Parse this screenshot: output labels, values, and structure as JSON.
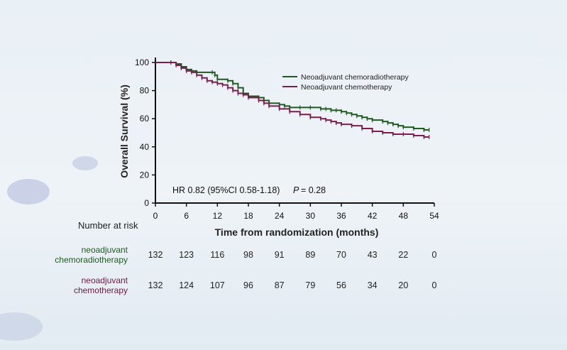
{
  "chart_data": {
    "type": "line",
    "subtype": "kaplan-meier",
    "ylabel": "Overall Survival (%)",
    "xlabel": "Time from randomization (months)",
    "xlim": [
      0,
      54
    ],
    "ylim": [
      0,
      100
    ],
    "xticks": [
      0,
      6,
      12,
      18,
      24,
      30,
      36,
      42,
      48,
      54
    ],
    "yticks": [
      0,
      20,
      40,
      60,
      80,
      100
    ],
    "grid": false,
    "legend_position": "top-right",
    "annotation": {
      "hr_text": "HR 0.82 (95%CI 0.58-1.18)",
      "p_label": "P",
      "p_value": "= 0.28"
    },
    "series": [
      {
        "name": "Neoadjuvant chemoradiotherapy",
        "color": "#1f5a1f",
        "x": [
          0,
          3,
          4,
          5,
          6,
          7,
          8,
          11,
          11.5,
          12,
          14,
          15,
          16,
          17,
          18,
          20,
          21,
          22,
          24,
          25,
          26,
          28,
          30,
          32,
          33,
          34,
          35,
          36,
          37,
          38,
          39,
          40,
          41,
          42,
          44,
          45,
          46,
          47,
          48,
          50,
          52,
          53
        ],
        "y": [
          100,
          100,
          99,
          97,
          95,
          94,
          93,
          93,
          91,
          88,
          87,
          85,
          82,
          78,
          76,
          75,
          73,
          71,
          70,
          69,
          68,
          68,
          68,
          67,
          67,
          66,
          66,
          65,
          64,
          63,
          62,
          61,
          60,
          59,
          58,
          57,
          56,
          55,
          54,
          53,
          52,
          52
        ]
      },
      {
        "name": "Neoadjuvant chemotherapy",
        "color": "#7b1d4e",
        "x": [
          0,
          3,
          4,
          5,
          6,
          7,
          8,
          9,
          10,
          11,
          12,
          13,
          14,
          15,
          16,
          17,
          18,
          20,
          21,
          22,
          24,
          26,
          28,
          30,
          32,
          33,
          34,
          35,
          36,
          38,
          40,
          42,
          44,
          46,
          48,
          50,
          52,
          53
        ],
        "y": [
          100,
          100,
          98,
          96,
          94,
          93,
          91,
          89,
          87,
          86,
          85,
          84,
          82,
          80,
          78,
          77,
          75,
          73,
          71,
          69,
          67,
          65,
          63,
          61,
          60,
          59,
          58,
          57,
          56,
          55,
          53,
          51,
          50,
          49,
          49,
          48,
          47,
          47
        ]
      }
    ]
  },
  "risk_table": {
    "title": "Number at risk",
    "times": [
      0,
      6,
      12,
      18,
      24,
      30,
      36,
      42,
      48,
      54
    ],
    "rows": [
      {
        "label_line1": "neoadjuvant",
        "label_line2": "chemoradiotherapy",
        "values": [
          "132",
          "123",
          "116",
          "98",
          "91",
          "89",
          "70",
          "43",
          "22",
          "0"
        ]
      },
      {
        "label_line1": "neoadjuvant",
        "label_line2": "chemotherapy",
        "values": [
          "132",
          "124",
          "107",
          "96",
          "87",
          "79",
          "56",
          "34",
          "20",
          "0"
        ]
      }
    ]
  }
}
